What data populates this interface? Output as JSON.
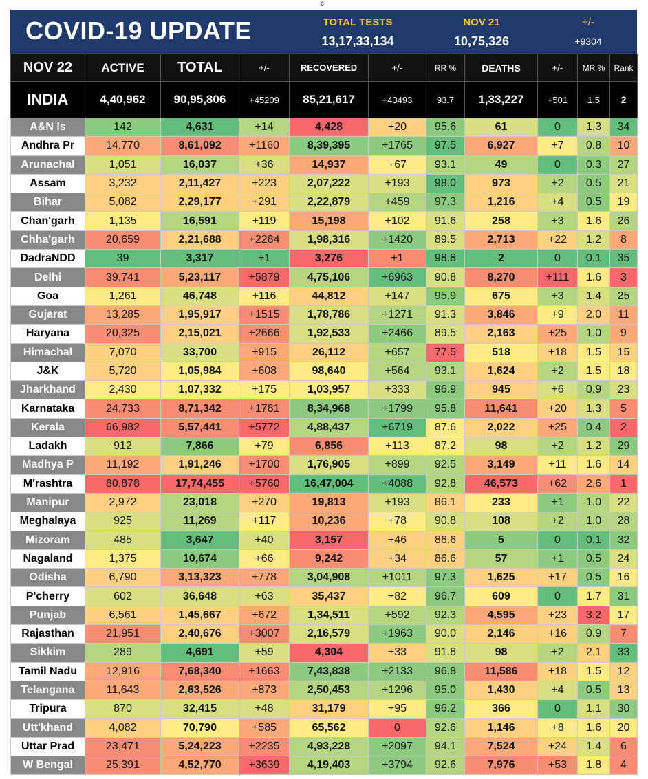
{
  "top_mark": "c",
  "banner": {
    "title": "COVID-19 UPDATE",
    "total_tests_label": "TOTAL TESTS",
    "total_tests_value": "13,17,33,134",
    "date_label": "NOV 21",
    "date_value": "10,75,326",
    "change_label": "+/-",
    "change_value": "+9304"
  },
  "header": {
    "date": "NOV 22",
    "active": "ACTIVE",
    "total": "TOTAL",
    "pm1": "+/-",
    "recovered": "RECOVERED",
    "pm2": "+/-",
    "rr": "RR %",
    "deaths": "DEATHS",
    "pm3": "+/-",
    "mr": "MR %",
    "rank": "Rank"
  },
  "india": {
    "name": "INDIA",
    "active": "4,40,962",
    "total": "90,95,806",
    "total_pm": "+45209",
    "recovered": "85,21,617",
    "rec_pm": "+43493",
    "rr": "93.7",
    "deaths": "1,33,227",
    "deaths_pm": "+501",
    "mr": "1.5",
    "rank": "2"
  },
  "colors": {
    "green_dark": "#63be7b",
    "green": "#8ccb7e",
    "green_light": "#b5d680",
    "yellow_green": "#d7df81",
    "yellow": "#ffeb84",
    "orange_light": "#fdd17f",
    "orange": "#fba977",
    "red_orange": "#f98e72",
    "red": "#f8696b"
  },
  "states": [
    {
      "name": "A&N Is",
      "active": "142",
      "total": "4,631",
      "total_pm": "+14",
      "recovered": "4,428",
      "rec_pm": "+20",
      "rr": "95.6",
      "deaths": "61",
      "deaths_pm": "0",
      "mr": "1.3",
      "rank": "34"
    },
    {
      "name": "Andhra Pr",
      "active": "14,770",
      "total": "8,61,092",
      "total_pm": "+1160",
      "recovered": "8,39,395",
      "rec_pm": "+1765",
      "rr": "97.5",
      "deaths": "6,927",
      "deaths_pm": "+7",
      "mr": "0.8",
      "rank": "10"
    },
    {
      "name": "Arunachal",
      "active": "1,051",
      "total": "16,037",
      "total_pm": "+36",
      "recovered": "14,937",
      "rec_pm": "+67",
      "rr": "93.1",
      "deaths": "49",
      "deaths_pm": "0",
      "mr": "0.3",
      "rank": "27"
    },
    {
      "name": "Assam",
      "active": "3,232",
      "total": "2,11,427",
      "total_pm": "+223",
      "recovered": "2,07,222",
      "rec_pm": "+193",
      "rr": "98.0",
      "deaths": "973",
      "deaths_pm": "+2",
      "mr": "0.5",
      "rank": "21"
    },
    {
      "name": "Bihar",
      "active": "5,082",
      "total": "2,29,177",
      "total_pm": "+291",
      "recovered": "2,22,879",
      "rec_pm": "+459",
      "rr": "97.3",
      "deaths": "1,216",
      "deaths_pm": "+4",
      "mr": "0.5",
      "rank": "19"
    },
    {
      "name": "Chan'garh",
      "active": "1,135",
      "total": "16,591",
      "total_pm": "+119",
      "recovered": "15,198",
      "rec_pm": "+102",
      "rr": "91.6",
      "deaths": "258",
      "deaths_pm": "+3",
      "mr": "1.6",
      "rank": "26"
    },
    {
      "name": "Chha'garh",
      "active": "20,659",
      "total": "2,21,688",
      "total_pm": "+2284",
      "recovered": "1,98,316",
      "rec_pm": "+1420",
      "rr": "89.5",
      "deaths": "2,713",
      "deaths_pm": "+22",
      "mr": "1.2",
      "rank": "8"
    },
    {
      "name": "DadraNDD",
      "active": "39",
      "total": "3,317",
      "total_pm": "+1",
      "recovered": "3,276",
      "rec_pm": "+1",
      "rr": "98.8",
      "deaths": "2",
      "deaths_pm": "0",
      "mr": "0.1",
      "rank": "35"
    },
    {
      "name": "Delhi",
      "active": "39,741",
      "total": "5,23,117",
      "total_pm": "+5879",
      "recovered": "4,75,106",
      "rec_pm": "+6963",
      "rr": "90.8",
      "deaths": "8,270",
      "deaths_pm": "+111",
      "mr": "1.6",
      "rank": "3"
    },
    {
      "name": "Goa",
      "active": "1,261",
      "total": "46,748",
      "total_pm": "+116",
      "recovered": "44,812",
      "rec_pm": "+147",
      "rr": "95.9",
      "deaths": "675",
      "deaths_pm": "+3",
      "mr": "1.4",
      "rank": "25"
    },
    {
      "name": "Gujarat",
      "active": "13,285",
      "total": "1,95,917",
      "total_pm": "+1515",
      "recovered": "1,78,786",
      "rec_pm": "+1271",
      "rr": "91.3",
      "deaths": "3,846",
      "deaths_pm": "+9",
      "mr": "2.0",
      "rank": "11"
    },
    {
      "name": "Haryana",
      "active": "20,325",
      "total": "2,15,021",
      "total_pm": "+2666",
      "recovered": "1,92,533",
      "rec_pm": "+2466",
      "rr": "89.5",
      "deaths": "2,163",
      "deaths_pm": "+25",
      "mr": "1.0",
      "rank": "9"
    },
    {
      "name": "Himachal",
      "active": "7,070",
      "total": "33,700",
      "total_pm": "+915",
      "recovered": "26,112",
      "rec_pm": "+657",
      "rr": "77.5",
      "deaths": "518",
      "deaths_pm": "+18",
      "mr": "1.5",
      "rank": "15"
    },
    {
      "name": "J&K",
      "active": "5,720",
      "total": "1,05,984",
      "total_pm": "+608",
      "recovered": "98,640",
      "rec_pm": "+564",
      "rr": "93.1",
      "deaths": "1,624",
      "deaths_pm": "+2",
      "mr": "1.5",
      "rank": "18"
    },
    {
      "name": "Jharkhand",
      "active": "2,430",
      "total": "1,07,332",
      "total_pm": "+175",
      "recovered": "1,03,957",
      "rec_pm": "+333",
      "rr": "96.9",
      "deaths": "945",
      "deaths_pm": "+6",
      "mr": "0.9",
      "rank": "23"
    },
    {
      "name": "Karnataka",
      "active": "24,733",
      "total": "8,71,342",
      "total_pm": "+1781",
      "recovered": "8,34,968",
      "rec_pm": "+1799",
      "rr": "95.8",
      "deaths": "11,641",
      "deaths_pm": "+20",
      "mr": "1.3",
      "rank": "5"
    },
    {
      "name": "Kerala",
      "active": "66,982",
      "total": "5,57,441",
      "total_pm": "+5772",
      "recovered": "4,88,437",
      "rec_pm": "+6719",
      "rr": "87.6",
      "deaths": "2,022",
      "deaths_pm": "+25",
      "mr": "0.4",
      "rank": "2"
    },
    {
      "name": "Ladakh",
      "active": "912",
      "total": "7,866",
      "total_pm": "+79",
      "recovered": "6,856",
      "rec_pm": "+113",
      "rr": "87.2",
      "deaths": "98",
      "deaths_pm": "+2",
      "mr": "1.2",
      "rank": "29"
    },
    {
      "name": "Madhya P",
      "active": "11,192",
      "total": "1,91,246",
      "total_pm": "+1700",
      "recovered": "1,76,905",
      "rec_pm": "+899",
      "rr": "92.5",
      "deaths": "3,149",
      "deaths_pm": "+11",
      "mr": "1.6",
      "rank": "14"
    },
    {
      "name": "M'rashtra",
      "active": "80,878",
      "total": "17,74,455",
      "total_pm": "+5760",
      "recovered": "16,47,004",
      "rec_pm": "+4088",
      "rr": "92.8",
      "deaths": "46,573",
      "deaths_pm": "+62",
      "mr": "2.6",
      "rank": "1"
    },
    {
      "name": "Manipur",
      "active": "2,972",
      "total": "23,018",
      "total_pm": "+270",
      "recovered": "19,813",
      "rec_pm": "+193",
      "rr": "86.1",
      "deaths": "233",
      "deaths_pm": "+1",
      "mr": "1.0",
      "rank": "22"
    },
    {
      "name": "Meghalaya",
      "active": "925",
      "total": "11,269",
      "total_pm": "+117",
      "recovered": "10,236",
      "rec_pm": "+78",
      "rr": "90.8",
      "deaths": "108",
      "deaths_pm": "+2",
      "mr": "1.0",
      "rank": "28"
    },
    {
      "name": "Mizoram",
      "active": "485",
      "total": "3,647",
      "total_pm": "+40",
      "recovered": "3,157",
      "rec_pm": "+46",
      "rr": "86.6",
      "deaths": "5",
      "deaths_pm": "0",
      "mr": "0.1",
      "rank": "32"
    },
    {
      "name": "Nagaland",
      "active": "1,375",
      "total": "10,674",
      "total_pm": "+66",
      "recovered": "9,242",
      "rec_pm": "+34",
      "rr": "86.6",
      "deaths": "57",
      "deaths_pm": "+1",
      "mr": "0.5",
      "rank": "24"
    },
    {
      "name": "Odisha",
      "active": "6,790",
      "total": "3,13,323",
      "total_pm": "+778",
      "recovered": "3,04,908",
      "rec_pm": "+1011",
      "rr": "97.3",
      "deaths": "1,625",
      "deaths_pm": "+17",
      "mr": "0.5",
      "rank": "16"
    },
    {
      "name": "P'cherry",
      "active": "602",
      "total": "36,648",
      "total_pm": "+63",
      "recovered": "35,437",
      "rec_pm": "+82",
      "rr": "96.7",
      "deaths": "609",
      "deaths_pm": "0",
      "mr": "1.7",
      "rank": "31"
    },
    {
      "name": "Punjab",
      "active": "6,561",
      "total": "1,45,667",
      "total_pm": "+672",
      "recovered": "1,34,511",
      "rec_pm": "+592",
      "rr": "92.3",
      "deaths": "4,595",
      "deaths_pm": "+23",
      "mr": "3.2",
      "rank": "17"
    },
    {
      "name": "Rajasthan",
      "active": "21,951",
      "total": "2,40,676",
      "total_pm": "+3007",
      "recovered": "2,16,579",
      "rec_pm": "+1963",
      "rr": "90.0",
      "deaths": "2,146",
      "deaths_pm": "+16",
      "mr": "0.9",
      "rank": "7"
    },
    {
      "name": "Sikkim",
      "active": "289",
      "total": "4,691",
      "total_pm": "+59",
      "recovered": "4,304",
      "rec_pm": "+33",
      "rr": "91.8",
      "deaths": "98",
      "deaths_pm": "+2",
      "mr": "2.1",
      "rank": "33"
    },
    {
      "name": "Tamil Nadu",
      "active": "12,916",
      "total": "7,68,340",
      "total_pm": "+1663",
      "recovered": "7,43,838",
      "rec_pm": "+2133",
      "rr": "96.8",
      "deaths": "11,586",
      "deaths_pm": "+18",
      "mr": "1.5",
      "rank": "12"
    },
    {
      "name": "Telangana",
      "active": "11,643",
      "total": "2,63,526",
      "total_pm": "+873",
      "recovered": "2,50,453",
      "rec_pm": "+1296",
      "rr": "95.0",
      "deaths": "1,430",
      "deaths_pm": "+4",
      "mr": "0.5",
      "rank": "13"
    },
    {
      "name": "Tripura",
      "active": "870",
      "total": "32,415",
      "total_pm": "+48",
      "recovered": "31,179",
      "rec_pm": "+95",
      "rr": "96.2",
      "deaths": "366",
      "deaths_pm": "0",
      "mr": "1.1",
      "rank": "30"
    },
    {
      "name": "Utt'khand",
      "active": "4,082",
      "total": "70,790",
      "total_pm": "+585",
      "recovered": "65,562",
      "rec_pm": "0",
      "rr": "92.6",
      "deaths": "1,146",
      "deaths_pm": "+8",
      "mr": "1.6",
      "rank": "20"
    },
    {
      "name": "Uttar Prad",
      "active": "23,471",
      "total": "5,24,223",
      "total_pm": "+2235",
      "recovered": "4,93,228",
      "rec_pm": "+2097",
      "rr": "94.1",
      "deaths": "7,524",
      "deaths_pm": "+24",
      "mr": "1.4",
      "rank": "6"
    },
    {
      "name": "W Bengal",
      "active": "25,391",
      "total": "4,52,770",
      "total_pm": "+3639",
      "recovered": "4,19,403",
      "rec_pm": "+3794",
      "rr": "92.6",
      "deaths": "7,976",
      "deaths_pm": "+53",
      "mr": "1.8",
      "rank": "4"
    }
  ]
}
